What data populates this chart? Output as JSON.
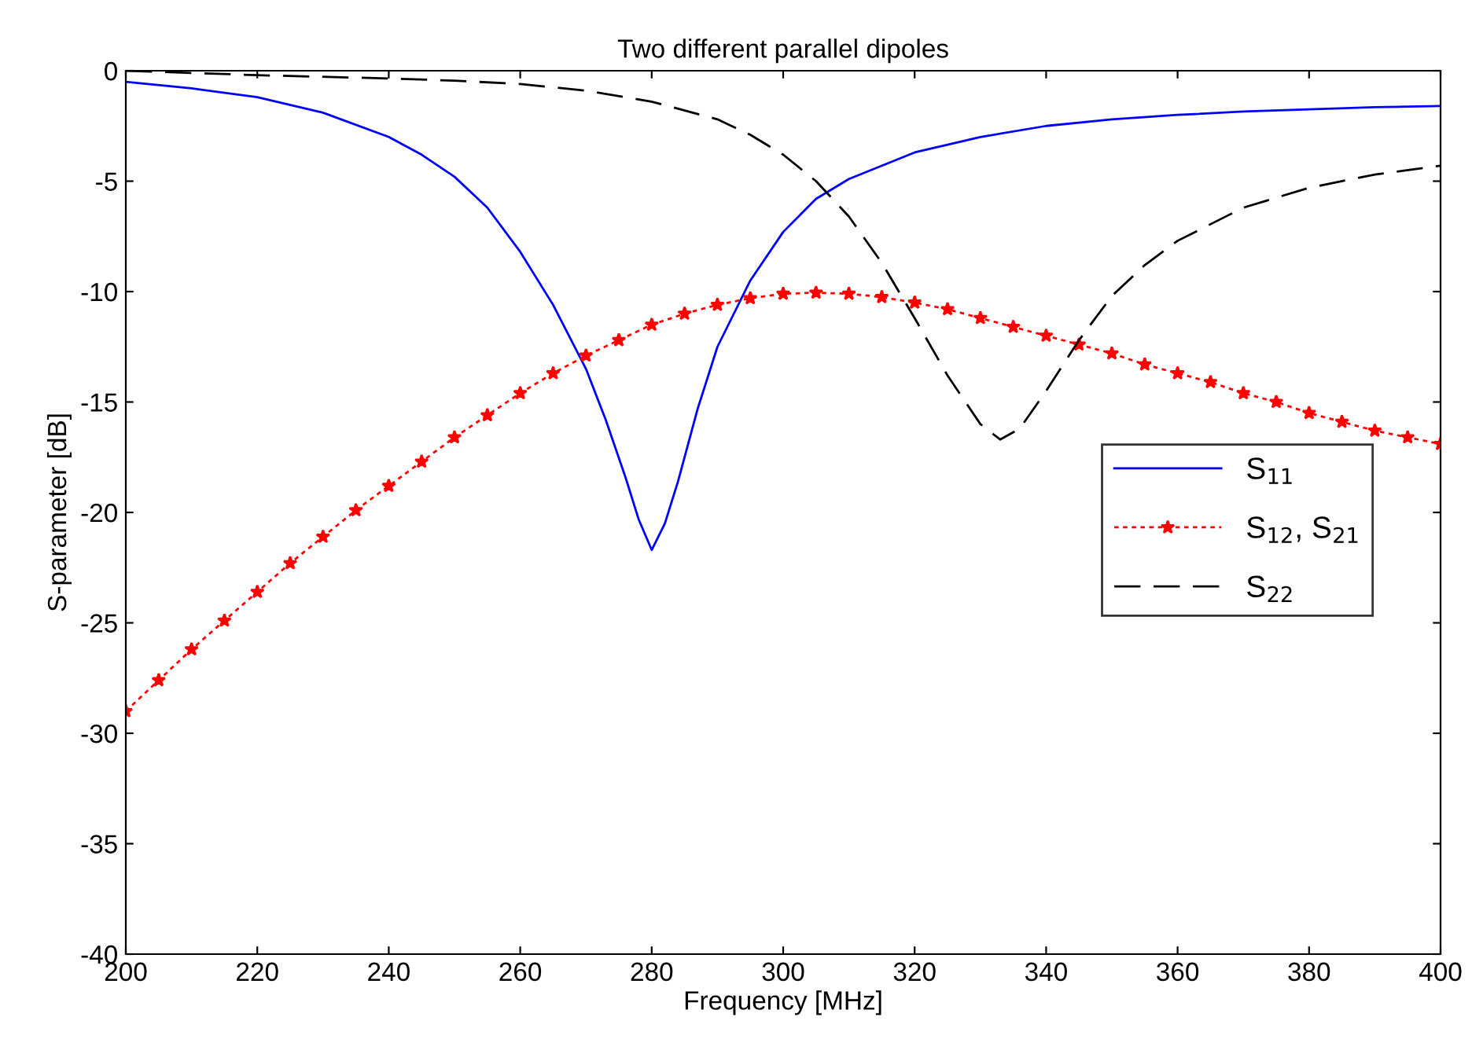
{
  "chart_data": {
    "type": "line",
    "title": "Two different parallel dipoles",
    "xlabel": "Frequency [MHz]",
    "ylabel": "S-parameter [dB]",
    "xlim": [
      200,
      400
    ],
    "ylim": [
      -40,
      0
    ],
    "xticks": [
      200,
      220,
      240,
      260,
      280,
      300,
      320,
      340,
      360,
      380,
      400
    ],
    "yticks": [
      -40,
      -35,
      -30,
      -25,
      -20,
      -15,
      -10,
      -5,
      0
    ],
    "grid": false,
    "legend": "right",
    "series": [
      {
        "name": "S$_{11}$",
        "color": "#0000ff",
        "line_style": "solid",
        "marker": "none",
        "x": [
          200,
          210,
          220,
          230,
          240,
          245,
          250,
          255,
          260,
          265,
          270,
          273,
          276,
          278,
          280,
          282,
          284,
          287,
          290,
          295,
          300,
          305,
          310,
          320,
          330,
          340,
          350,
          360,
          370,
          380,
          390,
          400
        ],
        "values": [
          -0.5,
          -0.8,
          -1.2,
          -1.9,
          -3.0,
          -3.8,
          -4.8,
          -6.2,
          -8.2,
          -10.6,
          -13.5,
          -15.8,
          -18.4,
          -20.3,
          -21.7,
          -20.5,
          -18.6,
          -15.3,
          -12.5,
          -9.5,
          -7.3,
          -5.8,
          -4.9,
          -3.7,
          -3.0,
          -2.5,
          -2.2,
          -2.0,
          -1.85,
          -1.75,
          -1.65,
          -1.6
        ]
      },
      {
        "name": "S$_{12}$, S$_{21}$",
        "color": "#ff0000",
        "line_style": "dotted",
        "marker": "star",
        "x": [
          200,
          205,
          210,
          215,
          220,
          225,
          230,
          235,
          240,
          245,
          250,
          255,
          260,
          265,
          270,
          275,
          280,
          285,
          290,
          295,
          300,
          305,
          310,
          315,
          320,
          325,
          330,
          335,
          340,
          345,
          350,
          355,
          360,
          365,
          370,
          375,
          380,
          385,
          390,
          395,
          400
        ],
        "values": [
          -29.0,
          -27.6,
          -26.2,
          -24.9,
          -23.6,
          -22.3,
          -21.1,
          -19.9,
          -18.8,
          -17.7,
          -16.6,
          -15.6,
          -14.6,
          -13.7,
          -12.9,
          -12.2,
          -11.5,
          -11.0,
          -10.6,
          -10.3,
          -10.1,
          -10.05,
          -10.1,
          -10.25,
          -10.5,
          -10.8,
          -11.2,
          -11.6,
          -12.0,
          -12.4,
          -12.8,
          -13.3,
          -13.7,
          -14.1,
          -14.6,
          -15.0,
          -15.5,
          -15.9,
          -16.3,
          -16.6,
          -16.9
        ]
      },
      {
        "name": "S$_{22}$",
        "color": "#000000",
        "line_style": "dashed",
        "marker": "none",
        "x": [
          200,
          220,
          240,
          250,
          260,
          270,
          280,
          290,
          295,
          300,
          305,
          310,
          315,
          320,
          325,
          330,
          333,
          336,
          340,
          345,
          350,
          355,
          360,
          370,
          380,
          390,
          400
        ],
        "values": [
          0,
          -0.2,
          -0.35,
          -0.45,
          -0.6,
          -0.9,
          -1.4,
          -2.2,
          -2.9,
          -3.8,
          -5.0,
          -6.6,
          -8.7,
          -11.2,
          -13.8,
          -16.0,
          -16.7,
          -16.2,
          -14.5,
          -12.2,
          -10.2,
          -8.8,
          -7.7,
          -6.2,
          -5.3,
          -4.7,
          -4.3
        ]
      }
    ]
  }
}
